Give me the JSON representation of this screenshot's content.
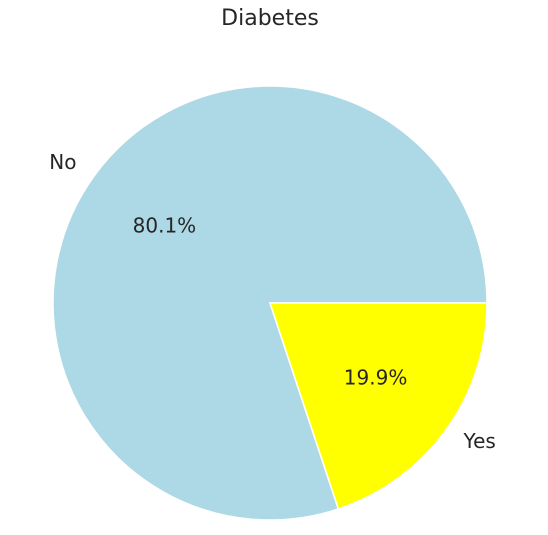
{
  "chart_data": {
    "type": "pie",
    "title": "Diabetes",
    "categories": [
      "No",
      "Yes"
    ],
    "values": [
      80.1,
      19.9
    ],
    "value_labels": [
      "80.1%",
      "19.9%"
    ],
    "colors": [
      "#add8e6",
      "#ffff00"
    ]
  }
}
